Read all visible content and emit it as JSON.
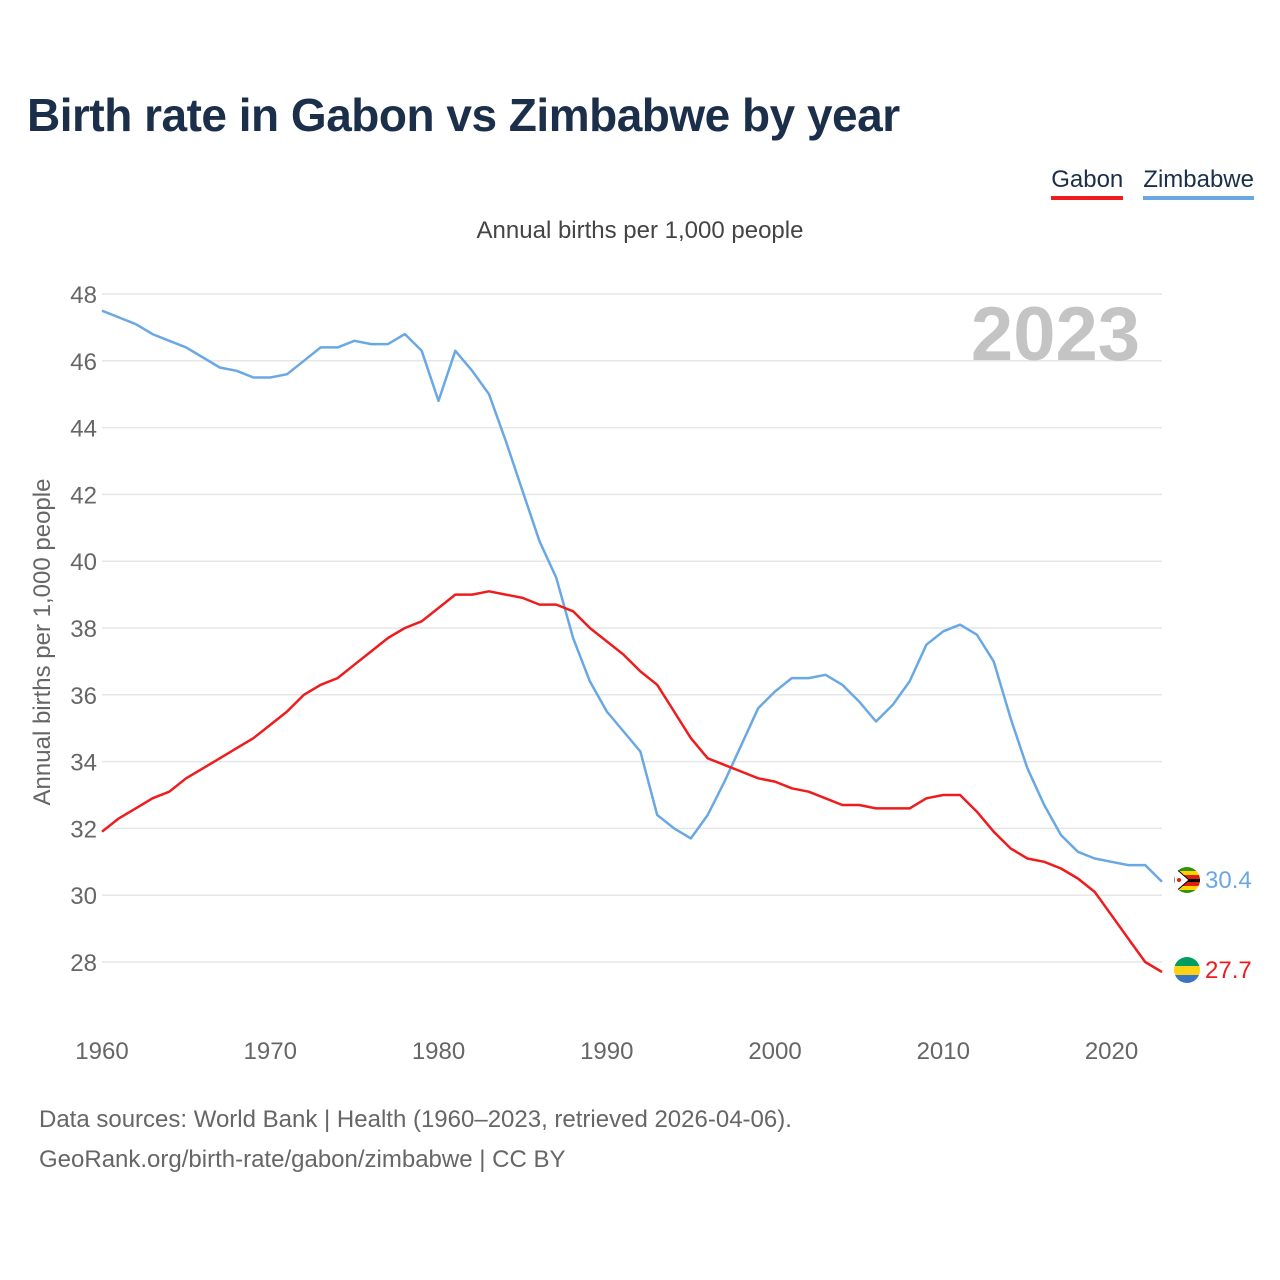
{
  "title": "Birth rate in Gabon vs Zimbabwe by year",
  "subtitle": "Annual births per 1,000 people",
  "year_label": "2023",
  "footer": {
    "sources": "Data sources: World Bank | Health (1960–2023, retrieved 2026-04-06).",
    "link": "GeoRank.org/birth-rate/gabon/zimbabwe | CC BY"
  },
  "colors": {
    "title": "#1b2f4a",
    "gabon": "#ee1c1c",
    "zimbabwe": "#6aa8e4",
    "grid": "#e6e6e6",
    "tick": "#666666",
    "year": "#c4c4c4"
  },
  "chart_data": {
    "type": "line",
    "title": "Birth rate in Gabon vs Zimbabwe by year",
    "ylabel": "Annual births per 1,000 people",
    "xlabel": "",
    "xlim": [
      1960,
      2023
    ],
    "ylim": [
      26.5,
      48
    ],
    "yticks": [
      28,
      30,
      32,
      34,
      36,
      38,
      40,
      42,
      44,
      46,
      48
    ],
    "xticks": [
      1960,
      1970,
      1980,
      1990,
      2000,
      2010,
      2020
    ],
    "grid": true,
    "legend": "top-right",
    "x": [
      1960,
      1961,
      1962,
      1963,
      1964,
      1965,
      1966,
      1967,
      1968,
      1969,
      1970,
      1971,
      1972,
      1973,
      1974,
      1975,
      1976,
      1977,
      1978,
      1979,
      1980,
      1981,
      1982,
      1983,
      1984,
      1985,
      1986,
      1987,
      1988,
      1989,
      1990,
      1991,
      1992,
      1993,
      1994,
      1995,
      1996,
      1997,
      1998,
      1999,
      2000,
      2001,
      2002,
      2003,
      2004,
      2005,
      2006,
      2007,
      2008,
      2009,
      2010,
      2011,
      2012,
      2013,
      2014,
      2015,
      2016,
      2017,
      2018,
      2019,
      2020,
      2021,
      2022,
      2023
    ],
    "series": [
      {
        "name": "Gabon",
        "end_label": "27.7",
        "values": [
          31.9,
          32.3,
          32.6,
          32.9,
          33.1,
          33.5,
          33.8,
          34.1,
          34.4,
          34.7,
          35.1,
          35.5,
          36.0,
          36.3,
          36.5,
          36.9,
          37.3,
          37.7,
          38.0,
          38.2,
          38.6,
          39.0,
          39.0,
          39.1,
          39.0,
          38.9,
          38.7,
          38.7,
          38.5,
          38.0,
          37.6,
          37.2,
          36.7,
          36.3,
          35.5,
          34.7,
          34.1,
          33.9,
          33.7,
          33.5,
          33.4,
          33.2,
          33.1,
          32.9,
          32.7,
          32.7,
          32.6,
          32.6,
          32.6,
          32.9,
          33.0,
          33.0,
          32.5,
          31.9,
          31.4,
          31.1,
          31.0,
          30.8,
          30.5,
          30.1,
          29.4,
          28.7,
          28.0,
          27.7
        ]
      },
      {
        "name": "Zimbabwe",
        "end_label": "30.4",
        "values": [
          47.5,
          47.3,
          47.1,
          46.8,
          46.6,
          46.4,
          46.1,
          45.8,
          45.7,
          45.5,
          45.5,
          45.6,
          46.0,
          46.4,
          46.4,
          46.6,
          46.5,
          46.5,
          46.8,
          46.3,
          44.8,
          46.3,
          45.7,
          45.0,
          43.6,
          42.1,
          40.6,
          39.5,
          37.7,
          36.4,
          35.5,
          34.9,
          34.3,
          32.4,
          32.0,
          31.7,
          32.4,
          33.4,
          34.5,
          35.6,
          36.1,
          36.5,
          36.5,
          36.6,
          36.3,
          35.8,
          35.2,
          35.7,
          36.4,
          37.5,
          37.9,
          38.1,
          37.8,
          37.0,
          35.3,
          33.8,
          32.7,
          31.8,
          31.3,
          31.1,
          31.0,
          30.9,
          30.9,
          30.4
        ]
      }
    ]
  }
}
